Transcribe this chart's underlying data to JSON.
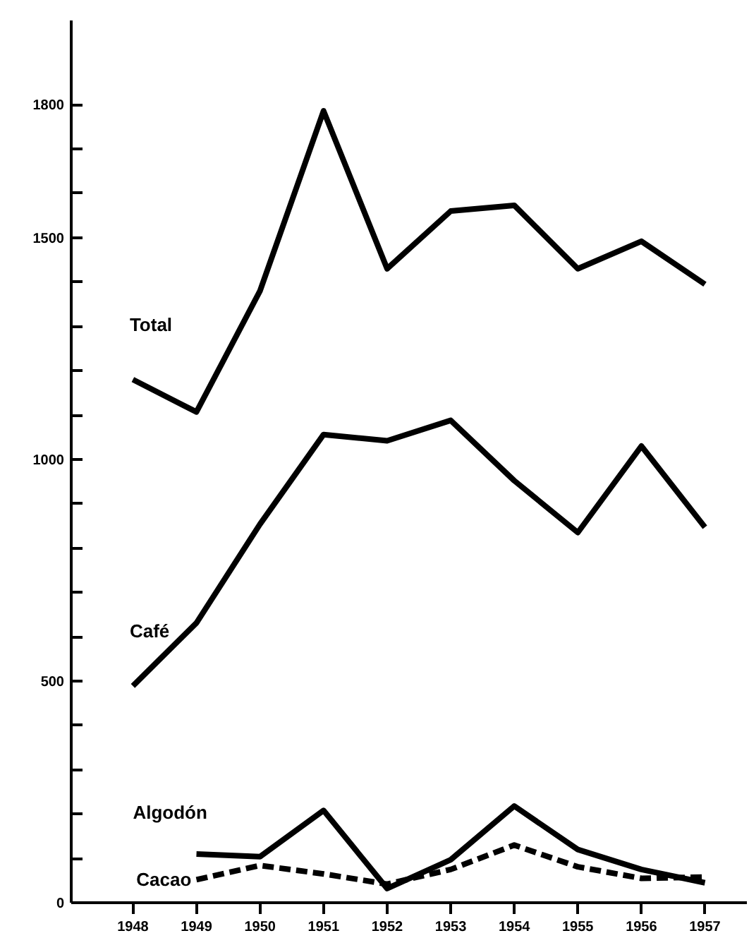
{
  "chart_data": {
    "type": "line",
    "x": [
      1948,
      1949,
      1950,
      1951,
      1952,
      1953,
      1954,
      1955,
      1956,
      1957
    ],
    "xlim": [
      1947.03,
      1957.66
    ],
    "ylim": [
      0,
      1990
    ],
    "xticks": [
      1948,
      1949,
      1950,
      1951,
      1952,
      1953,
      1954,
      1955,
      1956,
      1957
    ],
    "yticks": [
      0,
      {
        "value": 100,
        "label": null
      },
      {
        "value": 200,
        "label": null
      },
      {
        "value": 300,
        "label": null
      },
      {
        "value": 400,
        "label": null
      },
      500,
      {
        "value": 600,
        "label": null
      },
      {
        "value": 700,
        "label": null
      },
      {
        "value": 800,
        "label": null
      },
      {
        "value": 900,
        "label": null
      },
      1000,
      {
        "value": 1100,
        "label": null
      },
      {
        "value": 1200,
        "label": null
      },
      {
        "value": 1300,
        "label": null
      },
      {
        "value": 1400,
        "label": null
      },
      1500,
      {
        "value": 1600,
        "label": null
      },
      {
        "value": 1700,
        "label": null
      },
      1800
    ],
    "grid": false,
    "legend": false,
    "line_style": "solid",
    "series": [
      {
        "name": "Total",
        "color": "#000000",
        "values": [
          1180,
          1107,
          1380,
          1786,
          1430,
          1560,
          1573,
          1430,
          1492,
          1395
        ]
      },
      {
        "name": "Café",
        "color": "#000000",
        "values": [
          489,
          631,
          854,
          1056,
          1042,
          1088,
          952,
          835,
          1030,
          847
        ]
      },
      {
        "name": "Algodón",
        "color": "#000000",
        "x": [
          1949,
          1950,
          1951,
          1952,
          1953,
          1954,
          1955,
          1956,
          1957
        ],
        "values": [
          110,
          104,
          208,
          32,
          97,
          218,
          120,
          75,
          45
        ]
      },
      {
        "name": "Cacao",
        "color": "#000000",
        "line_style": "dashed",
        "x": [
          1949,
          1950,
          1951,
          1952,
          1953,
          1954,
          1955,
          1956,
          1957
        ],
        "values": [
          52,
          84,
          65,
          42,
          75,
          130,
          81,
          55,
          58
        ]
      }
    ]
  }
}
